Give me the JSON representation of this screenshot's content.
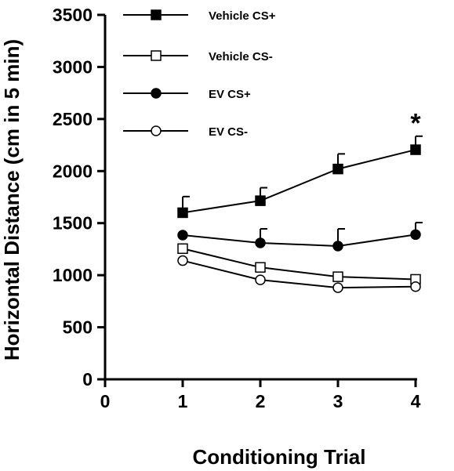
{
  "chart_data": {
    "type": "line",
    "xlabel": "Conditioning Trial",
    "ylabel": "Horizontal Distance (cm in 5 min)",
    "xlim": [
      0,
      4
    ],
    "ylim": [
      0,
      3500
    ],
    "xticks": [
      0,
      1,
      2,
      3,
      4
    ],
    "yticks": [
      0,
      500,
      1000,
      1500,
      2000,
      2500,
      3000,
      3500
    ],
    "x": [
      1,
      2,
      3,
      4
    ],
    "grid": false,
    "legend_position": "top",
    "series": [
      {
        "name": "Vehicle CS+",
        "marker": "filled-square",
        "values": [
          1600,
          1715,
          2020,
          2205
        ],
        "error_up": [
          155,
          125,
          145,
          130
        ]
      },
      {
        "name": "Vehicle CS-",
        "marker": "open-square",
        "values": [
          1255,
          1075,
          985,
          960
        ],
        "error_up": [
          0,
          0,
          0,
          0
        ]
      },
      {
        "name": "EV CS+",
        "marker": "filled-circle",
        "values": [
          1385,
          1310,
          1280,
          1390
        ],
        "error_up": [
          0,
          135,
          165,
          115
        ]
      },
      {
        "name": "EV CS-",
        "marker": "open-circle",
        "values": [
          1140,
          955,
          880,
          890
        ],
        "error_up": [
          0,
          0,
          0,
          0
        ]
      }
    ],
    "annotations": [
      {
        "text": "*",
        "x": 4,
        "y": 2540
      }
    ]
  }
}
